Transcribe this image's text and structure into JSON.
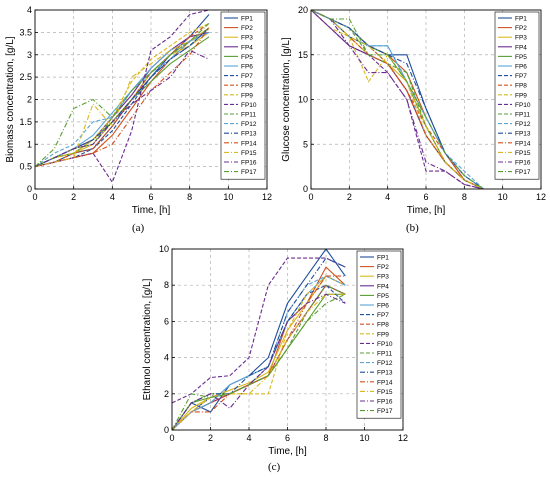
{
  "chart_data": [
    {
      "type": "line",
      "panel_label": "(a)",
      "title": "",
      "xlabel": "Time, [h]",
      "ylabel": "Biomass concentration, [g/L]",
      "xlim": [
        0,
        12
      ],
      "ylim": [
        0,
        4
      ],
      "xticks": [
        "0",
        "2",
        "4",
        "6",
        "8",
        "10",
        "12"
      ],
      "yticks": [
        "0",
        "0.5",
        "1",
        "1.5",
        "2",
        "2.5",
        "3",
        "3.5",
        "4"
      ],
      "grid": true,
      "legend_position": "top-right",
      "x": [
        0,
        1,
        2,
        3,
        4,
        5,
        6,
        7,
        8,
        9
      ],
      "series": [
        {
          "name": "FP1",
          "values": [
            0.5,
            0.6,
            0.8,
            0.9,
            1.4,
            2.0,
            2.5,
            3.0,
            3.4,
            3.9
          ]
        },
        {
          "name": "FP2",
          "values": [
            0.5,
            0.6,
            0.7,
            0.8,
            1.2,
            1.8,
            2.4,
            2.9,
            3.3,
            3.6
          ]
        },
        {
          "name": "FP3",
          "values": [
            0.5,
            0.7,
            0.8,
            1.0,
            1.5,
            2.0,
            2.6,
            3.0,
            3.2,
            3.5
          ]
        },
        {
          "name": "FP4",
          "values": [
            0.5,
            0.7,
            0.9,
            1.1,
            1.6,
            2.1,
            2.7,
            3.1,
            3.4,
            3.5
          ]
        },
        {
          "name": "FP5",
          "values": [
            0.5,
            0.7,
            0.8,
            1.1,
            1.5,
            2.0,
            2.4,
            2.8,
            3.1,
            3.4
          ]
        },
        {
          "name": "FP6",
          "values": [
            0.5,
            0.7,
            0.9,
            1.2,
            1.7,
            2.2,
            2.7,
            3.1,
            3.3,
            3.5
          ]
        },
        {
          "name": "FP7",
          "values": [
            0.5,
            0.6,
            0.7,
            0.9,
            1.3,
            1.9,
            2.5,
            2.9,
            3.2,
            3.6
          ]
        },
        {
          "name": "FP8",
          "values": [
            0.5,
            0.6,
            0.8,
            0.9,
            1.4,
            2.0,
            2.6,
            3.0,
            3.4,
            3.7
          ]
        },
        {
          "name": "FP9",
          "values": [
            0.5,
            0.7,
            0.8,
            1.1,
            1.6,
            2.4,
            2.9,
            3.2,
            3.5,
            3.7
          ]
        },
        {
          "name": "FP10",
          "values": [
            0.5,
            0.6,
            0.7,
            0.8,
            0.15,
            1.3,
            3.1,
            3.4,
            3.9,
            4.0
          ]
        },
        {
          "name": "FP11",
          "values": [
            0.5,
            0.7,
            0.9,
            1.0,
            1.6,
            2.2,
            2.6,
            3.0,
            3.3,
            3.6
          ]
        },
        {
          "name": "FP12",
          "values": [
            0.5,
            0.8,
            1.0,
            1.5,
            1.6,
            2.2,
            2.6,
            2.9,
            3.3,
            3.5
          ]
        },
        {
          "name": "FP13",
          "values": [
            0.5,
            0.7,
            0.9,
            1.1,
            1.5,
            2.0,
            2.5,
            2.9,
            3.2,
            3.6
          ]
        },
        {
          "name": "FP14",
          "values": [
            0.5,
            0.6,
            0.7,
            0.8,
            1.0,
            1.6,
            2.2,
            2.6,
            3.0,
            3.6
          ]
        },
        {
          "name": "FP15",
          "values": [
            0.5,
            0.6,
            0.7,
            1.9,
            1.4,
            2.5,
            2.8,
            3.1,
            3.3,
            3.6
          ]
        },
        {
          "name": "FP16",
          "values": [
            0.5,
            0.7,
            0.9,
            1.0,
            1.5,
            1.9,
            2.2,
            2.5,
            3.1,
            2.9
          ]
        },
        {
          "name": "FP17",
          "values": [
            0.5,
            0.9,
            1.8,
            2.0,
            1.6,
            2.2,
            2.6,
            3.0,
            3.3,
            3.7
          ]
        }
      ]
    },
    {
      "type": "line",
      "panel_label": "(b)",
      "title": "",
      "xlabel": "Time, [h]",
      "ylabel": "Glucose concentration, [g/L]",
      "xlim": [
        0,
        12
      ],
      "ylim": [
        0,
        20
      ],
      "xticks": [
        "0",
        "2",
        "4",
        "6",
        "8",
        "10",
        "12"
      ],
      "yticks": [
        "0",
        "5",
        "10",
        "15",
        "20"
      ],
      "grid": true,
      "legend_position": "top-right",
      "x": [
        0,
        1,
        2,
        3,
        4,
        5,
        6,
        7,
        8,
        9
      ],
      "series": [
        {
          "name": "FP1",
          "values": [
            20,
            19,
            18,
            16,
            15,
            15,
            9,
            4,
            1,
            0
          ]
        },
        {
          "name": "FP2",
          "values": [
            20,
            19,
            18,
            16,
            15,
            13,
            8,
            4,
            1,
            0
          ]
        },
        {
          "name": "FP3",
          "values": [
            20,
            19,
            17,
            15,
            14,
            12,
            7,
            3,
            1,
            0
          ]
        },
        {
          "name": "FP4",
          "values": [
            20,
            18,
            16,
            15,
            14,
            11,
            6,
            3,
            1,
            0
          ]
        },
        {
          "name": "FP5",
          "values": [
            20,
            19,
            18,
            16,
            15,
            12,
            7,
            3,
            1,
            0
          ]
        },
        {
          "name": "FP6",
          "values": [
            20,
            19,
            17,
            16,
            16,
            12,
            8,
            4,
            1.5,
            0
          ]
        },
        {
          "name": "FP7",
          "values": [
            20,
            19,
            17,
            16,
            14,
            11,
            6,
            3,
            1,
            0
          ]
        },
        {
          "name": "FP8",
          "values": [
            20,
            19,
            18,
            16,
            14,
            11,
            7,
            4,
            1,
            0
          ]
        },
        {
          "name": "FP9",
          "values": [
            20,
            18,
            17,
            12,
            15,
            12,
            6,
            3,
            1,
            0
          ]
        },
        {
          "name": "FP10",
          "values": [
            20,
            18,
            16,
            15,
            13,
            10,
            2,
            2,
            0.5,
            0
          ]
        },
        {
          "name": "FP11",
          "values": [
            20,
            19,
            18,
            15,
            14,
            13,
            7,
            3,
            1,
            0
          ]
        },
        {
          "name": "FP12",
          "values": [
            20,
            19,
            18,
            16,
            16,
            12,
            8,
            4,
            2,
            0
          ]
        },
        {
          "name": "FP13",
          "values": [
            20,
            19,
            18,
            16,
            15,
            14,
            9,
            4,
            1.5,
            0
          ]
        },
        {
          "name": "FP14",
          "values": [
            20,
            19,
            17,
            15,
            14,
            11,
            6,
            3,
            1,
            0
          ]
        },
        {
          "name": "FP15",
          "values": [
            20,
            19,
            17,
            16,
            14,
            12,
            7,
            3,
            1,
            0
          ]
        },
        {
          "name": "FP16",
          "values": [
            20,
            19,
            16,
            13,
            13,
            10,
            3,
            2,
            0.5,
            0
          ]
        },
        {
          "name": "FP17",
          "values": [
            20,
            19,
            19,
            15,
            15,
            12,
            8,
            4,
            1.5,
            0
          ]
        }
      ]
    },
    {
      "type": "line",
      "panel_label": "(c)",
      "title": "",
      "xlabel": "Time, [h]",
      "ylabel": "Ethanol concentration, [g/L]",
      "xlim": [
        0,
        12
      ],
      "ylim": [
        0,
        10
      ],
      "xticks": [
        "0",
        "2",
        "4",
        "6",
        "8",
        "10",
        "12"
      ],
      "yticks": [
        "0",
        "2",
        "4",
        "6",
        "8",
        "10"
      ],
      "grid": true,
      "legend_position": "top-right",
      "x": [
        0,
        1,
        2,
        3,
        4,
        5,
        6,
        7,
        8,
        9
      ],
      "series": [
        {
          "name": "FP1",
          "values": [
            0,
            1.5,
            1.0,
            2.5,
            3.0,
            4.0,
            7.0,
            8.5,
            10.0,
            8.5
          ]
        },
        {
          "name": "FP2",
          "values": [
            0,
            1.0,
            1.5,
            2.0,
            2.5,
            3.0,
            6.0,
            7.0,
            9.0,
            8.0
          ]
        },
        {
          "name": "FP3",
          "values": [
            0,
            1.2,
            1.8,
            2.2,
            2.6,
            3.2,
            5.5,
            7.0,
            8.5,
            8.0
          ]
        },
        {
          "name": "FP4",
          "values": [
            0,
            1.0,
            1.5,
            2.0,
            2.5,
            3.0,
            5.0,
            6.5,
            8.0,
            7.5
          ]
        },
        {
          "name": "FP5",
          "values": [
            0,
            1.5,
            1.8,
            2.0,
            2.5,
            3.0,
            4.5,
            6.0,
            7.5,
            7.5
          ]
        },
        {
          "name": "FP6",
          "values": [
            0,
            1.0,
            1.5,
            2.5,
            3.0,
            3.5,
            6.0,
            7.5,
            8.5,
            8.0
          ]
        },
        {
          "name": "FP7",
          "values": [
            0,
            1.0,
            1.8,
            2.0,
            2.5,
            3.5,
            6.0,
            7.5,
            8.0,
            7.0
          ]
        },
        {
          "name": "FP8",
          "values": [
            0,
            1.0,
            1.5,
            2.0,
            2.5,
            3.0,
            5.0,
            6.5,
            8.0,
            7.5
          ]
        },
        {
          "name": "FP9",
          "values": [
            0,
            1.2,
            1.8,
            2.0,
            2.0,
            2.0,
            5.5,
            7.5,
            8.5,
            8.0
          ]
        },
        {
          "name": "FP10",
          "values": [
            1.5,
            2.0,
            2.9,
            3.0,
            4.0,
            8.0,
            9.5,
            9.5,
            9.5,
            9.0
          ]
        },
        {
          "name": "FP11",
          "values": [
            0,
            1.5,
            2.0,
            2.0,
            2.5,
            3.0,
            4.5,
            6.5,
            8.0,
            7.5
          ]
        },
        {
          "name": "FP12",
          "values": [
            0,
            1.0,
            1.5,
            2.5,
            3.0,
            3.5,
            6.5,
            8.0,
            8.5,
            8.0
          ]
        },
        {
          "name": "FP13",
          "values": [
            0,
            1.5,
            2.0,
            2.0,
            3.0,
            3.5,
            6.5,
            8.0,
            9.5,
            9.0
          ]
        },
        {
          "name": "FP14",
          "values": [
            0,
            1.0,
            1.0,
            2.0,
            2.5,
            3.0,
            5.0,
            7.0,
            8.5,
            8.5
          ]
        },
        {
          "name": "FP15",
          "values": [
            0,
            1.0,
            1.8,
            2.0,
            2.0,
            3.0,
            5.0,
            6.5,
            7.5,
            7.5
          ]
        },
        {
          "name": "FP16",
          "values": [
            0,
            1.5,
            2.0,
            1.2,
            2.5,
            3.5,
            6.0,
            7.0,
            7.5,
            7.0
          ]
        },
        {
          "name": "FP17",
          "values": [
            0,
            2.0,
            1.8,
            2.0,
            2.5,
            3.0,
            4.5,
            6.0,
            7.0,
            7.5
          ]
        }
      ]
    }
  ],
  "series_styles": [
    {
      "color": "#1f4e9c",
      "dash": ""
    },
    {
      "color": "#d1521f",
      "dash": ""
    },
    {
      "color": "#d9b820",
      "dash": ""
    },
    {
      "color": "#6a2c8f",
      "dash": ""
    },
    {
      "color": "#5a9e32",
      "dash": ""
    },
    {
      "color": "#5aa6d6",
      "dash": ""
    },
    {
      "color": "#1f4e9c",
      "dash": "4,2"
    },
    {
      "color": "#d1521f",
      "dash": "4,2"
    },
    {
      "color": "#d9b820",
      "dash": "4,2"
    },
    {
      "color": "#6a2c8f",
      "dash": "4,2"
    },
    {
      "color": "#5a9e32",
      "dash": "4,2"
    },
    {
      "color": "#5aa6d6",
      "dash": "4,2"
    },
    {
      "color": "#1f4e9c",
      "dash": "5,2,1,2"
    },
    {
      "color": "#d1521f",
      "dash": "5,2,1,2"
    },
    {
      "color": "#d9b820",
      "dash": "5,2,1,2"
    },
    {
      "color": "#6a2c8f",
      "dash": "5,2,1,2"
    },
    {
      "color": "#5a9e32",
      "dash": "5,2,1,2"
    }
  ]
}
